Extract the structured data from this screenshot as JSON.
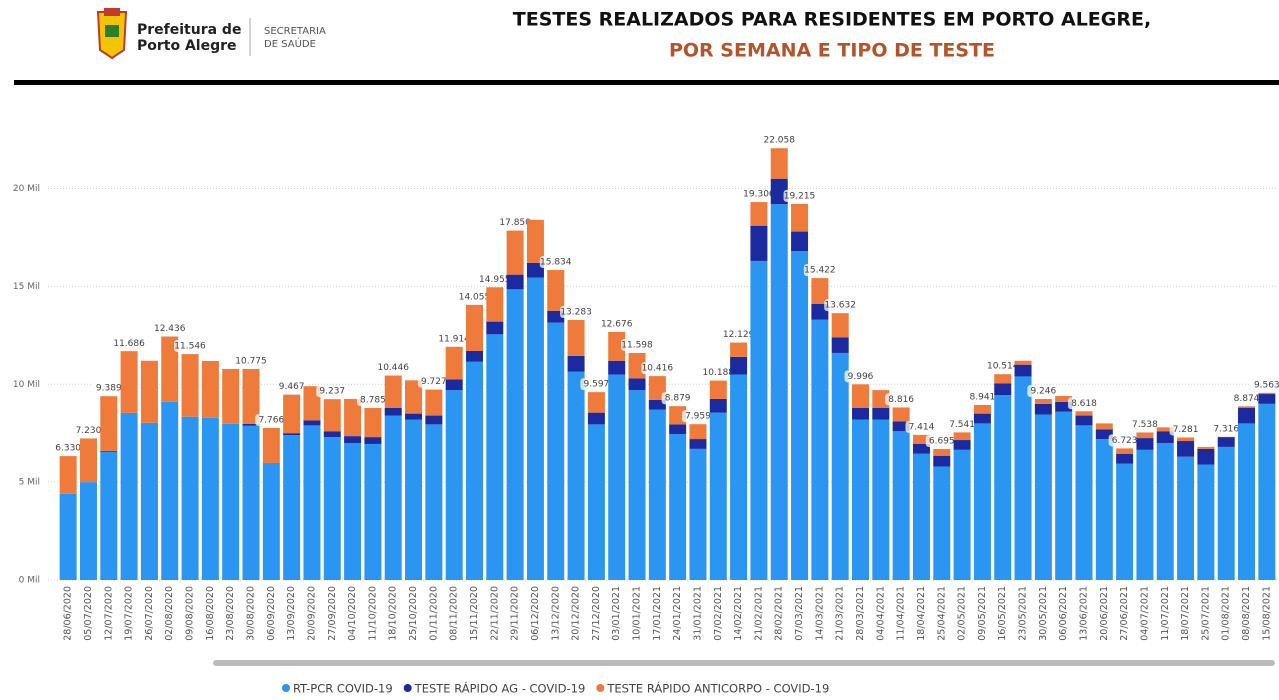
{
  "header": {
    "logo_line1": "Prefeitura de",
    "logo_line2": "Porto Alegre",
    "dept_line1": "SECRETARIA",
    "dept_line2": "DE SAÚDE"
  },
  "chart_data": {
    "type": "stacked_bar",
    "title": "TESTES REALIZADOS PARA RESIDENTES EM PORTO ALEGRE,",
    "subtitle": "POR SEMANA E TIPO DE TESTE",
    "categories": [
      "28/06/2020",
      "05/07/2020",
      "12/07/2020",
      "19/07/2020",
      "26/07/2020",
      "02/08/2020",
      "09/08/2020",
      "16/08/2020",
      "23/08/2020",
      "30/08/2020",
      "06/09/2020",
      "13/09/2020",
      "20/09/2020",
      "27/09/2020",
      "04/10/2020",
      "11/10/2020",
      "18/10/2020",
      "25/10/2020",
      "01/11/2020",
      "08/11/2020",
      "15/11/2020",
      "22/11/2020",
      "29/11/2020",
      "06/12/2020",
      "13/12/2020",
      "20/12/2020",
      "27/12/2020",
      "03/01/2021",
      "10/01/2021",
      "17/01/2021",
      "24/01/2021",
      "31/01/2021",
      "07/02/2021",
      "14/02/2021",
      "21/02/2021",
      "28/02/2021",
      "07/03/2021",
      "14/03/2021",
      "21/03/2021",
      "28/03/2021",
      "04/04/2021",
      "11/04/2021",
      "18/04/2021",
      "25/04/2021",
      "02/05/2021",
      "09/05/2021",
      "16/05/2021",
      "23/05/2021",
      "30/05/2021",
      "06/06/2021",
      "13/06/2021",
      "20/06/2021",
      "27/06/2021",
      "04/07/2021",
      "11/07/2021",
      "18/07/2021",
      "25/07/2021",
      "01/08/2021",
      "08/08/2021",
      "15/08/2021"
    ],
    "series": [
      {
        "name": "RT-PCR COVID-19",
        "color": "#2b95f2",
        "values": [
          4.4,
          5.0,
          6.55,
          8.54,
          8.03,
          9.1,
          8.34,
          8.29,
          7.98,
          7.88,
          5.98,
          7.4,
          7.9,
          7.3,
          7.0,
          6.95,
          8.4,
          8.2,
          7.95,
          9.7,
          11.15,
          12.55,
          14.85,
          15.45,
          13.15,
          10.65,
          7.95,
          10.5,
          9.7,
          8.7,
          7.45,
          6.7,
          8.55,
          10.5,
          16.3,
          19.2,
          16.8,
          13.3,
          11.6,
          8.2,
          8.2,
          7.6,
          6.45,
          5.8,
          6.65,
          8.0,
          9.45,
          10.4,
          8.45,
          8.6,
          7.9,
          7.2,
          5.95,
          6.65,
          7.0,
          6.3,
          5.9,
          6.8,
          8.0,
          9.0
        ]
      },
      {
        "name": "TESTE RÁPIDO AG - COVID-19",
        "color": "#1b2a9e",
        "values": [
          0,
          0,
          0.05,
          0,
          0,
          0,
          0,
          0,
          0,
          0.1,
          0,
          0.1,
          0.25,
          0.3,
          0.35,
          0.35,
          0.4,
          0.3,
          0.45,
          0.55,
          0.55,
          0.65,
          0.75,
          0.75,
          0.6,
          0.8,
          0.6,
          0.7,
          0.6,
          0.5,
          0.5,
          0.5,
          0.7,
          0.9,
          1.8,
          1.3,
          1.0,
          0.8,
          0.8,
          0.6,
          0.6,
          0.5,
          0.5,
          0.55,
          0.5,
          0.5,
          0.6,
          0.6,
          0.55,
          0.5,
          0.5,
          0.5,
          0.5,
          0.6,
          0.6,
          0.8,
          0.8,
          0.5,
          0.8,
          0.5
        ]
      },
      {
        "name": "TESTE RÁPIDO ANTICORPO - COVID-19",
        "color": "#ee7a3c",
        "values": [
          1.93,
          2.23,
          2.79,
          3.15,
          3.17,
          3.34,
          3.2,
          2.9,
          2.8,
          2.8,
          1.79,
          1.97,
          1.75,
          1.637,
          1.9,
          1.485,
          1.646,
          1.7,
          1.327,
          1.664,
          2.355,
          1.755,
          2.25,
          2.2,
          2.084,
          1.833,
          1.047,
          1.476,
          1.298,
          1.216,
          0.929,
          0.759,
          0.938,
          0.729,
          1.206,
          1.558,
          1.415,
          1.322,
          1.232,
          1.196,
          0.9,
          0.716,
          0.464,
          0.345,
          0.391,
          0.441,
          0.464,
          0.2,
          0.246,
          0.3,
          0.218,
          0.3,
          0.273,
          0.288,
          0.2,
          0.181,
          0.1,
          0.016,
          0.074,
          0.063
        ]
      }
    ],
    "totals": {
      "values": [
        6.33,
        7.23,
        9.389,
        11.686,
        null,
        12.436,
        11.546,
        null,
        null,
        10.775,
        7.766,
        9.467,
        null,
        9.237,
        null,
        8.785,
        10.446,
        null,
        9.727,
        11.914,
        14.055,
        14.955,
        17.85,
        null,
        15.834,
        13.283,
        9.597,
        12.676,
        11.598,
        10.416,
        8.879,
        7.959,
        10.188,
        12.129,
        19.306,
        22.058,
        19.215,
        15.422,
        13.632,
        9.996,
        null,
        8.816,
        7.414,
        6.695,
        7.541,
        8.941,
        10.514,
        null,
        9.246,
        null,
        8.618,
        null,
        6.723,
        7.538,
        null,
        7.281,
        null,
        7.316,
        8.874,
        9.563
      ],
      "value_labels": [
        "6.330",
        "7.230",
        "9.389",
        "11.686",
        null,
        "12.436",
        "11.546",
        null,
        null,
        "10.775",
        "7.766",
        "9.467",
        null,
        "9.237",
        null,
        "8.785",
        "10.446",
        null,
        "9.727",
        "11.914",
        "14.055",
        "14.955",
        "17.850",
        null,
        "15.834",
        "13.283",
        "9.597",
        "12.676",
        "11.598",
        "10.416",
        "8.879",
        "7.959",
        "10.188",
        "12.129",
        "19.306",
        "22.058",
        "19.215",
        "15.422",
        "13.632",
        "9.996",
        null,
        "8.816",
        "7.414",
        "6.695",
        "7.541",
        "8.941",
        "10.514",
        null,
        "9.246",
        null,
        "8.618",
        null,
        "6.723",
        "7.538",
        null,
        "7.281",
        null,
        "7.316",
        "8.874",
        "9.563"
      ]
    },
    "ylim": [
      0,
      23.5
    ],
    "yticks": [
      {
        "value": 0,
        "label": "0 Mil"
      },
      {
        "value": 5,
        "label": "5 Mil"
      },
      {
        "value": 10,
        "label": "10 Mil"
      },
      {
        "value": 15,
        "label": "15 Mil"
      },
      {
        "value": 20,
        "label": "20 Mil"
      }
    ],
    "grid": true,
    "legend": "bottom"
  }
}
